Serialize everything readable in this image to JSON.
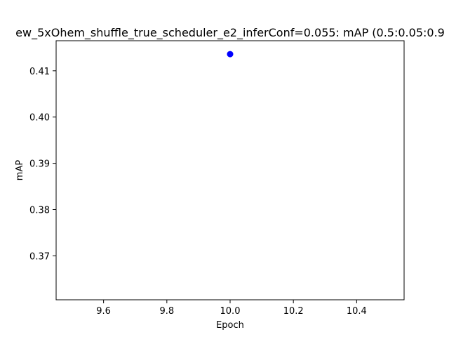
{
  "chart_data": {
    "type": "scatter",
    "title": "ew_5xOhem_shuffle_true_scheduler_e2_inferConf=0.055:  mAP (0.5:0.05:0.9",
    "xlabel": "Epoch",
    "ylabel": "mAP",
    "xlim": [
      9.45,
      10.55
    ],
    "ylim": [
      0.3605,
      0.4165
    ],
    "x_ticks": [
      "9.6",
      "9.8",
      "10.0",
      "10.2",
      "10.4"
    ],
    "y_ticks": [
      "0.37",
      "0.38",
      "0.39",
      "0.40",
      "0.41"
    ],
    "grid": false,
    "series": [
      {
        "color": "#0000ff",
        "points": [
          {
            "x": 10.0,
            "y": 0.4136
          }
        ]
      }
    ]
  }
}
